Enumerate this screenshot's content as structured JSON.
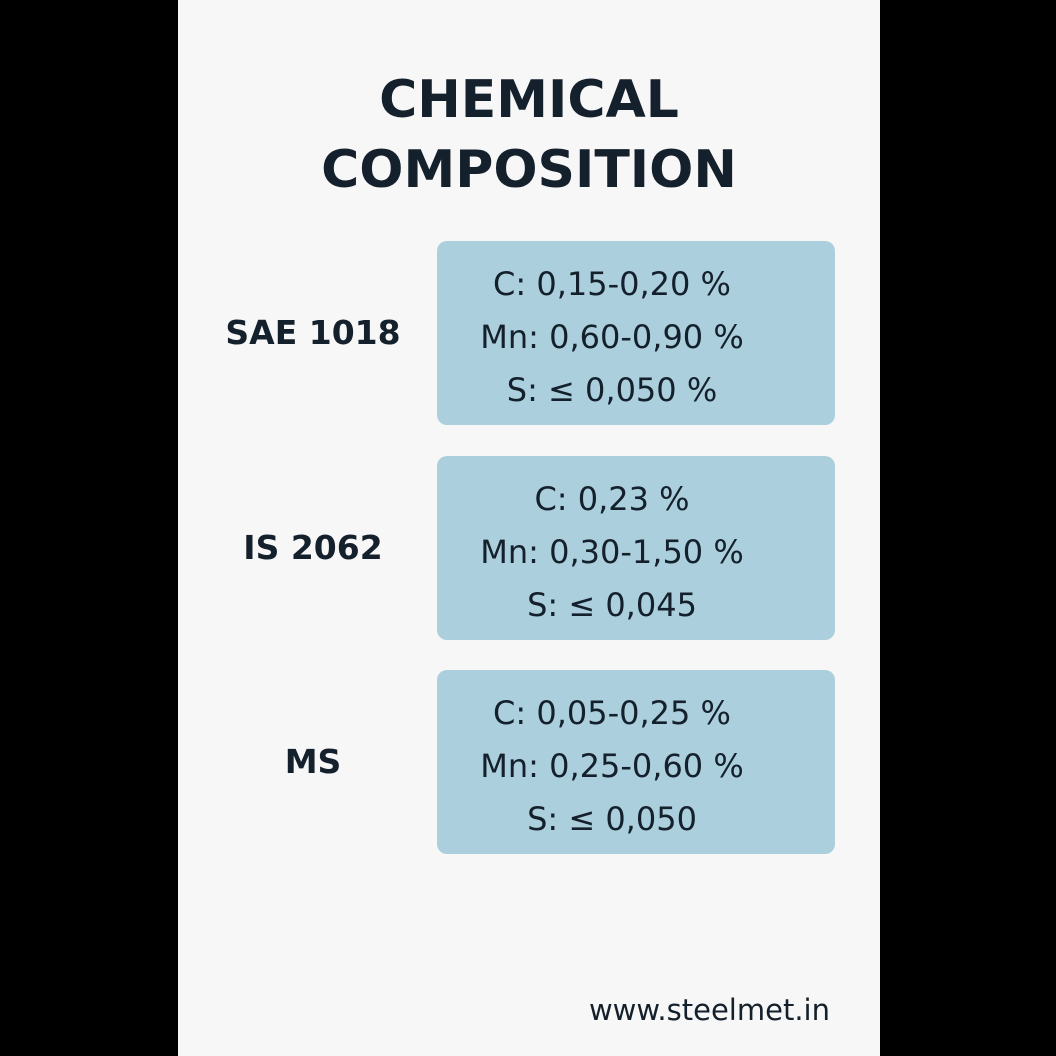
{
  "header": {
    "title_lines": [
      "CHEMICAL",
      "COMPOSITION"
    ]
  },
  "grades": [
    {
      "name": "SAE 1018",
      "lines": [
        "C: 0,15-0,20 %",
        "Mn: 0,60-0,90 %",
        "S: ≤ 0,050 %"
      ]
    },
    {
      "name": "IS 2062",
      "lines": [
        "C: 0,23 %",
        "Mn: 0,30-1,50 %",
        "S: ≤ 0,045"
      ]
    },
    {
      "name": "MS",
      "lines": [
        "C: 0,05-0,25 %",
        "Mn: 0,25-0,60 %",
        "S: ≤ 0,050"
      ]
    }
  ],
  "footer": {
    "website": "www.steelmet.in"
  }
}
